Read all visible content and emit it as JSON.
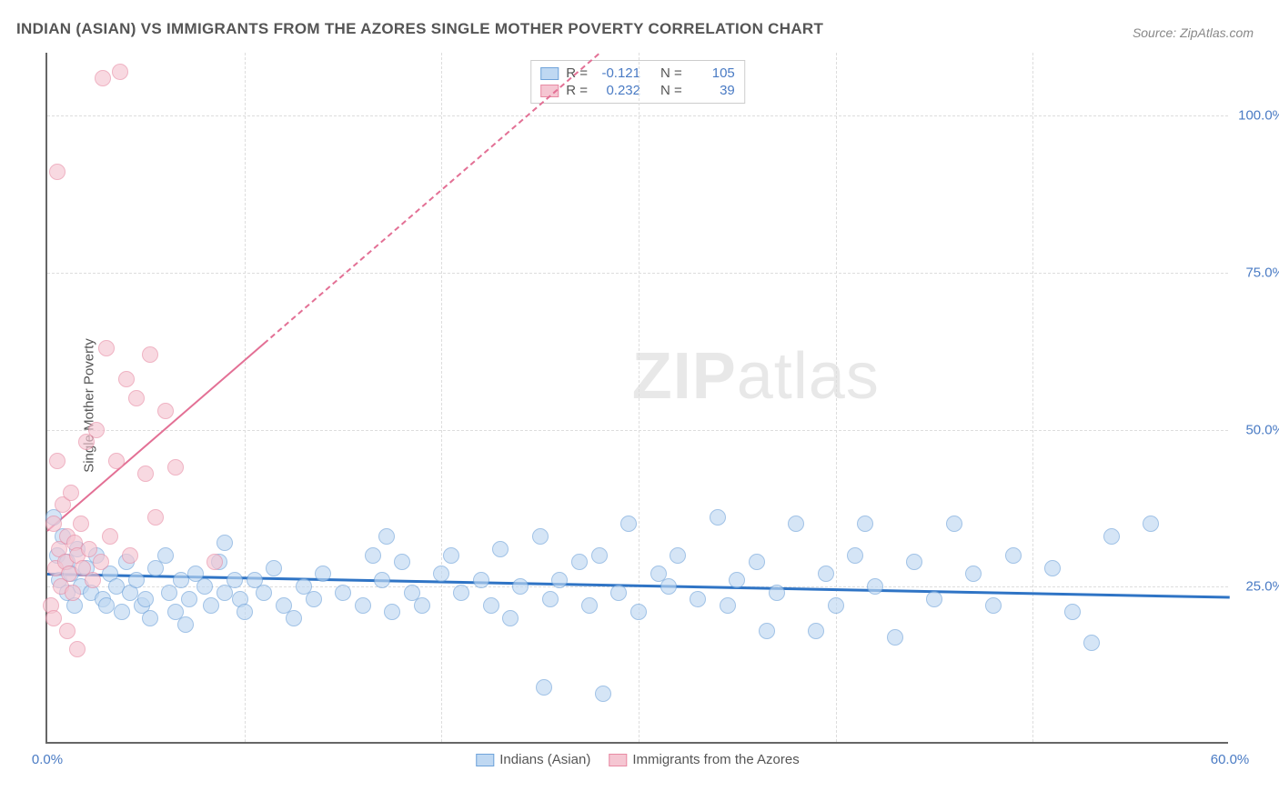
{
  "title": "INDIAN (ASIAN) VS IMMIGRANTS FROM THE AZORES SINGLE MOTHER POVERTY CORRELATION CHART",
  "source": "Source: ZipAtlas.com",
  "watermark": {
    "zip": "ZIP",
    "atlas": "atlas"
  },
  "chart": {
    "type": "scatter",
    "yaxis_title": "Single Mother Poverty",
    "background_color": "#ffffff",
    "grid_color": "#dddddd",
    "axis_color": "#666666",
    "xlim": [
      0,
      60
    ],
    "ylim": [
      0,
      110
    ],
    "xticks": [
      {
        "v": 0,
        "label": "0.0%"
      },
      {
        "v": 10,
        "label": ""
      },
      {
        "v": 20,
        "label": ""
      },
      {
        "v": 30,
        "label": ""
      },
      {
        "v": 40,
        "label": ""
      },
      {
        "v": 50,
        "label": ""
      },
      {
        "v": 60,
        "label": "60.0%"
      }
    ],
    "yticks": [
      {
        "v": 25,
        "label": "25.0%"
      },
      {
        "v": 50,
        "label": "50.0%"
      },
      {
        "v": 75,
        "label": "75.0%"
      },
      {
        "v": 100,
        "label": "100.0%"
      }
    ],
    "marker_radius": 9,
    "marker_border_width": 1.3,
    "series": [
      {
        "name": "Indians (Asian)",
        "fill_color": "#bfd8f2",
        "stroke_color": "#6fa3da",
        "fill_opacity": 0.65,
        "R": "-0.121",
        "N": "105",
        "trend": {
          "x1": 0,
          "y1": 27.2,
          "x2": 60,
          "y2": 23.5,
          "color": "#2f74c5",
          "width": 3,
          "dash": "solid"
        },
        "points": [
          [
            0.3,
            36
          ],
          [
            0.5,
            30
          ],
          [
            0.6,
            26
          ],
          [
            0.8,
            33
          ],
          [
            1.0,
            24
          ],
          [
            1.0,
            29
          ],
          [
            1.2,
            27
          ],
          [
            1.4,
            22
          ],
          [
            1.5,
            31
          ],
          [
            1.7,
            25
          ],
          [
            2.0,
            28
          ],
          [
            2.2,
            24
          ],
          [
            2.5,
            30
          ],
          [
            2.8,
            23
          ],
          [
            3.0,
            22
          ],
          [
            3.2,
            27
          ],
          [
            3.5,
            25
          ],
          [
            3.8,
            21
          ],
          [
            4.0,
            29
          ],
          [
            4.2,
            24
          ],
          [
            4.5,
            26
          ],
          [
            4.8,
            22
          ],
          [
            5.0,
            23
          ],
          [
            5.2,
            20
          ],
          [
            5.5,
            28
          ],
          [
            6.0,
            30
          ],
          [
            6.2,
            24
          ],
          [
            6.5,
            21
          ],
          [
            6.8,
            26
          ],
          [
            7.0,
            19
          ],
          [
            7.2,
            23
          ],
          [
            7.5,
            27
          ],
          [
            8.0,
            25
          ],
          [
            8.3,
            22
          ],
          [
            8.7,
            29
          ],
          [
            9.0,
            24
          ],
          [
            9.5,
            26
          ],
          [
            9.8,
            23
          ],
          [
            9.0,
            32
          ],
          [
            10.0,
            21
          ],
          [
            10.5,
            26
          ],
          [
            11.0,
            24
          ],
          [
            11.5,
            28
          ],
          [
            12.0,
            22
          ],
          [
            12.5,
            20
          ],
          [
            13.0,
            25
          ],
          [
            13.5,
            23
          ],
          [
            14.0,
            27
          ],
          [
            15.0,
            24
          ],
          [
            16.0,
            22
          ],
          [
            16.5,
            30
          ],
          [
            17.0,
            26
          ],
          [
            17.2,
            33
          ],
          [
            17.5,
            21
          ],
          [
            18.0,
            29
          ],
          [
            18.5,
            24
          ],
          [
            19.0,
            22
          ],
          [
            20.0,
            27
          ],
          [
            20.5,
            30
          ],
          [
            21.0,
            24
          ],
          [
            22.0,
            26
          ],
          [
            22.5,
            22
          ],
          [
            23.0,
            31
          ],
          [
            23.5,
            20
          ],
          [
            24.0,
            25
          ],
          [
            25.0,
            33
          ],
          [
            25.2,
            9
          ],
          [
            25.5,
            23
          ],
          [
            26.0,
            26
          ],
          [
            27.0,
            29
          ],
          [
            27.5,
            22
          ],
          [
            28.0,
            30
          ],
          [
            28.2,
            8
          ],
          [
            29.0,
            24
          ],
          [
            29.5,
            35
          ],
          [
            30.0,
            21
          ],
          [
            31.0,
            27
          ],
          [
            31.5,
            25
          ],
          [
            32.0,
            30
          ],
          [
            33.0,
            23
          ],
          [
            34.0,
            36
          ],
          [
            34.5,
            22
          ],
          [
            35.0,
            26
          ],
          [
            36.0,
            29
          ],
          [
            36.5,
            18
          ],
          [
            37.0,
            24
          ],
          [
            38.0,
            35
          ],
          [
            39.0,
            18
          ],
          [
            39.5,
            27
          ],
          [
            40.0,
            22
          ],
          [
            41.0,
            30
          ],
          [
            41.5,
            35
          ],
          [
            42.0,
            25
          ],
          [
            43.0,
            17
          ],
          [
            44.0,
            29
          ],
          [
            45.0,
            23
          ],
          [
            46.0,
            35
          ],
          [
            47.0,
            27
          ],
          [
            48.0,
            22
          ],
          [
            49.0,
            30
          ],
          [
            51.0,
            28
          ],
          [
            52.0,
            21
          ],
          [
            53.0,
            16
          ],
          [
            54.0,
            33
          ],
          [
            56.0,
            35
          ]
        ]
      },
      {
        "name": "Immigrants from the Azores",
        "fill_color": "#f5c6d2",
        "stroke_color": "#e88ba4",
        "fill_opacity": 0.65,
        "R": "0.232",
        "N": "39",
        "trend": {
          "x1": 0,
          "y1": 34,
          "x2": 28,
          "y2": 110,
          "color": "#e37095",
          "width": 2,
          "dash_solid_until_x": 11,
          "dash": "dashed"
        },
        "points": [
          [
            0.2,
            22
          ],
          [
            0.3,
            35
          ],
          [
            0.4,
            28
          ],
          [
            0.5,
            45
          ],
          [
            0.6,
            31
          ],
          [
            0.7,
            25
          ],
          [
            0.8,
            38
          ],
          [
            0.9,
            29
          ],
          [
            1.0,
            33
          ],
          [
            1.1,
            27
          ],
          [
            1.2,
            40
          ],
          [
            1.3,
            24
          ],
          [
            1.4,
            32
          ],
          [
            1.5,
            30
          ],
          [
            1.7,
            35
          ],
          [
            1.8,
            28
          ],
          [
            2.0,
            48
          ],
          [
            2.1,
            31
          ],
          [
            2.3,
            26
          ],
          [
            2.5,
            50
          ],
          [
            2.7,
            29
          ],
          [
            2.8,
            106
          ],
          [
            3.0,
            63
          ],
          [
            3.2,
            33
          ],
          [
            3.5,
            45
          ],
          [
            3.7,
            107
          ],
          [
            4.0,
            58
          ],
          [
            4.2,
            30
          ],
          [
            4.5,
            55
          ],
          [
            5.0,
            43
          ],
          [
            5.2,
            62
          ],
          [
            5.5,
            36
          ],
          [
            6.0,
            53
          ],
          [
            6.5,
            44
          ],
          [
            0.5,
            91
          ],
          [
            1.0,
            18
          ],
          [
            1.5,
            15
          ],
          [
            0.3,
            20
          ],
          [
            8.5,
            29
          ]
        ]
      }
    ],
    "legend_top": {
      "labels": {
        "R": "R =",
        "N": "N ="
      }
    },
    "legend_bottom": [
      {
        "swatch_series": 0
      },
      {
        "swatch_series": 1
      }
    ]
  }
}
